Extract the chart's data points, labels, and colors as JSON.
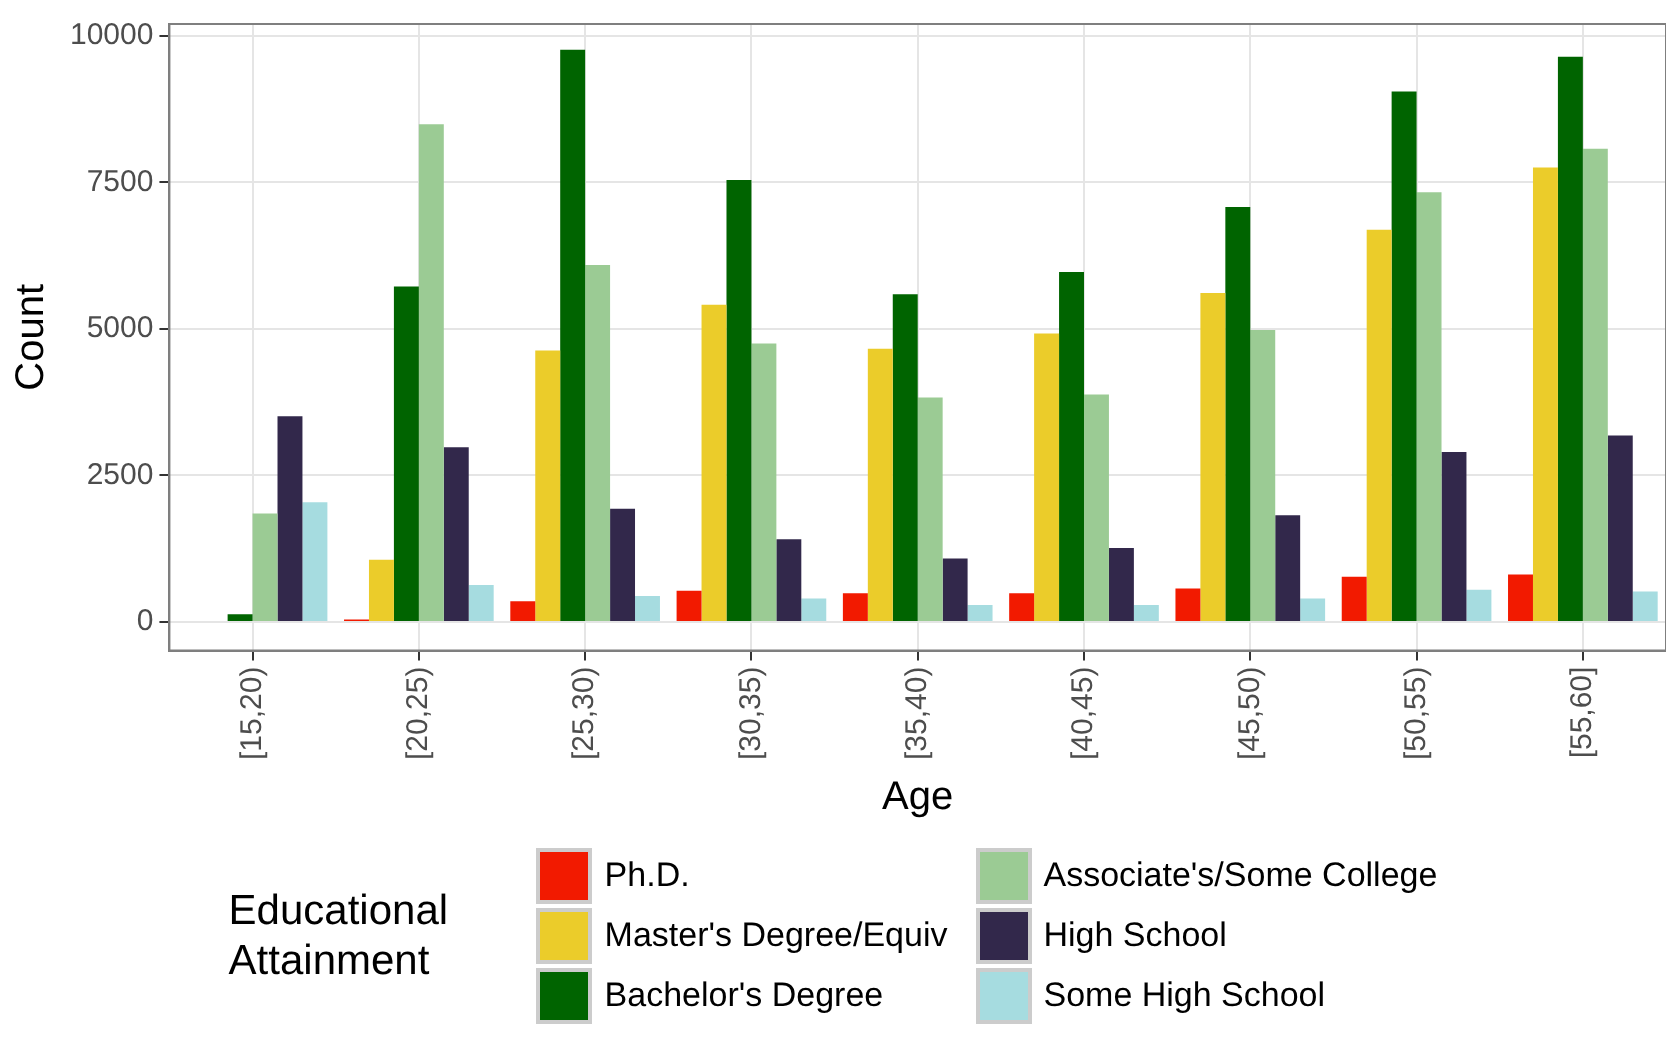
{
  "chart_data": {
    "type": "bar",
    "xlabel": "Age",
    "ylabel": "Count",
    "legend_title": "Educational Attainment",
    "categories": [
      "[15,20)",
      "[20,25)",
      "[25,30)",
      "[30,35)",
      "[35,40)",
      "[40,45)",
      "[45,50)",
      "[50,55)",
      "[55,60]"
    ],
    "series": [
      {
        "name": "Ph.D.",
        "color": "#f21a00",
        "values": [
          null,
          40,
          350,
          530,
          490,
          490,
          570,
          770,
          810
        ]
      },
      {
        "name": "Master's Degree/Equiv",
        "color": "#ebcc2a",
        "values": [
          null,
          1060,
          4630,
          5410,
          4660,
          4920,
          5610,
          6690,
          7750
        ]
      },
      {
        "name": "Bachelor's Degree",
        "color": "#006400",
        "values": [
          130,
          5720,
          9760,
          7540,
          5590,
          5970,
          7080,
          9050,
          9640
        ]
      },
      {
        "name": "Associate's/Some College",
        "color": "#9bcb94",
        "values": [
          1850,
          8490,
          6090,
          4750,
          3830,
          3880,
          4980,
          7330,
          8070
        ]
      },
      {
        "name": "High School",
        "color": "#32284b",
        "values": [
          3510,
          2980,
          1930,
          1410,
          1080,
          1260,
          1820,
          2900,
          3180
        ]
      },
      {
        "name": "Some High School",
        "color": "#a6dce0",
        "values": [
          2040,
          630,
          440,
          400,
          290,
          290,
          400,
          550,
          520
        ]
      }
    ],
    "ylim": [
      -490,
      10200
    ],
    "yticks": [
      0,
      2500,
      5000,
      7500,
      10000
    ],
    "grid": true,
    "legend": "bottom"
  }
}
